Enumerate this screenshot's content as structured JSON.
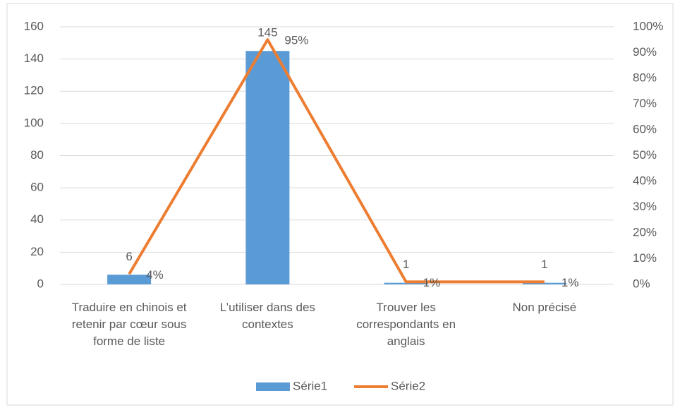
{
  "chart_data": {
    "type": "bar",
    "categories": [
      "Traduire en chinois et retenir par cœur sous forme de liste",
      "L’utiliser dans des contextes",
      "Trouver les correspondants en anglais",
      "Non précisé"
    ],
    "series": [
      {
        "name": "Série1",
        "type": "bar",
        "color": "#5b9bd5",
        "values": [
          6,
          145,
          1,
          1
        ]
      },
      {
        "name": "Série2",
        "type": "line",
        "axis": "y2",
        "color": "#ed7d31",
        "values": [
          4,
          95,
          1,
          1
        ],
        "value_labels": [
          "4%",
          "95%",
          "1%",
          "1%"
        ]
      }
    ],
    "ylim": [
      0,
      160
    ],
    "yticks": [
      0,
      20,
      40,
      60,
      80,
      100,
      120,
      140,
      160
    ],
    "y2lim": [
      0,
      100
    ],
    "y2ticks": [
      {
        "value": 0,
        "label": "0%"
      },
      {
        "value": 10,
        "label": "10%"
      },
      {
        "value": 20,
        "label": "20%"
      },
      {
        "value": 30,
        "label": "30%"
      },
      {
        "value": 40,
        "label": "40%"
      },
      {
        "value": 50,
        "label": "50%"
      },
      {
        "value": 60,
        "label": "60%"
      },
      {
        "value": 70,
        "label": "70%"
      },
      {
        "value": 80,
        "label": "80%"
      },
      {
        "value": 90,
        "label": "90%"
      },
      {
        "value": 100,
        "label": "100%"
      }
    ],
    "grid": true,
    "legend": "bottom"
  }
}
